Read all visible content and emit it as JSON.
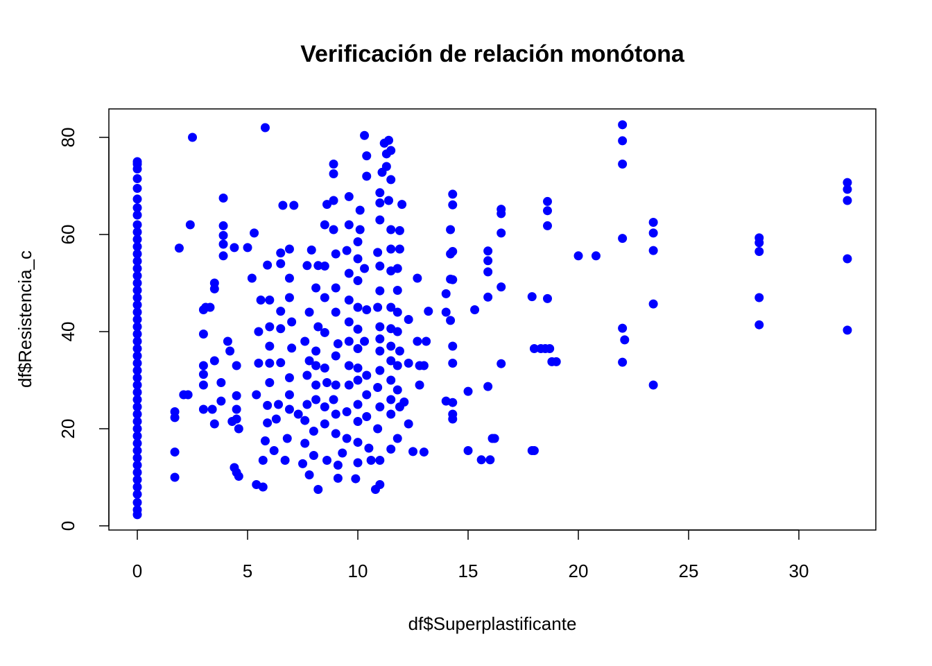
{
  "chart_data": {
    "type": "scatter",
    "title": "Verificación de relación monótona",
    "x_label": "df$Superplastificante",
    "y_label": "df$Resistencia_c",
    "color": "#0000ff",
    "xlim": [
      -1.29,
      33.49
    ],
    "ylim": [
      -0.86,
      85.86
    ],
    "xticks": [
      0,
      5,
      10,
      15,
      20,
      25,
      30
    ],
    "yticks": [
      0,
      20,
      40,
      60,
      80
    ],
    "x": [
      0,
      0,
      0,
      0,
      0,
      0,
      0,
      0,
      0,
      0,
      0,
      0,
      0,
      0,
      0,
      0,
      0,
      0,
      0,
      0,
      0,
      0,
      0,
      0,
      0,
      0,
      0,
      0,
      0,
      0,
      0,
      0,
      0,
      0,
      0,
      0,
      0,
      0,
      0,
      0,
      0,
      0,
      0,
      0,
      0,
      0,
      0,
      0,
      0,
      1.7,
      1.7,
      1.7,
      1.7,
      1.9,
      2.1,
      2.3,
      2.5,
      2.4,
      3,
      3,
      3,
      3,
      3,
      3,
      3.1,
      3.3,
      3.5,
      3.5,
      3.5,
      3.5,
      3.4,
      3.9,
      3.9,
      3.9,
      3.9,
      3.9,
      3.8,
      3.8,
      4.1,
      4.2,
      4.3,
      4.5,
      4.4,
      4.5,
      4.5,
      4.5,
      4.6,
      4.4,
      4.5,
      4.6,
      5,
      5.2,
      5.3,
      5.4,
      5.4,
      5.5,
      5.5,
      5.6,
      5.8,
      5.7,
      5.7,
      5.8,
      5.9,
      5.9,
      6,
      6,
      6,
      6,
      6,
      5.9,
      6.2,
      6.3,
      6.4,
      6.5,
      6.5,
      6.5,
      6.5,
      6.5,
      6.6,
      6.7,
      6.8,
      6.9,
      6.9,
      6.9,
      7.1,
      7,
      7,
      6.9,
      6.9,
      6.9,
      7.3,
      7.5,
      7.6,
      7.6,
      7.7,
      7.7,
      7.8,
      7.6,
      7.8,
      7.7,
      7.9,
      7.8,
      8,
      8,
      8.1,
      8.1,
      8.1,
      8.1,
      8.2,
      8.1,
      8.2,
      8.2,
      8.6,
      8.5,
      8.5,
      8.6,
      8.5,
      8.5,
      8.5,
      8.5,
      8.5,
      8.6,
      8.9,
      8.9,
      8.9,
      8.9,
      9,
      9,
      9,
      9.1,
      9,
      9,
      8.9,
      9,
      9,
      9.1,
      9.1,
      9.3,
      9.5,
      9.5,
      9.6,
      9.6,
      9.6,
      9.6,
      9.6,
      9.6,
      9.5,
      9.6,
      9.6,
      9.9,
      10,
      10,
      10,
      10,
      10,
      10,
      10,
      10,
      10,
      10,
      10,
      10,
      10.1,
      10.1,
      10.3,
      10.4,
      10.4,
      10.3,
      10.4,
      10.3,
      10.4,
      10.4,
      10.4,
      10.5,
      10.6,
      10.8,
      11,
      11,
      10.9,
      11,
      10.9,
      11,
      11,
      11,
      11,
      10.9,
      11,
      11,
      10.9,
      11,
      11,
      11,
      11.1,
      11.2,
      11.3,
      11.3,
      11.4,
      11.5,
      11.5,
      11.4,
      11.5,
      11.5,
      11.5,
      11.5,
      11.5,
      11.5,
      11.5,
      11.5,
      11.5,
      11.5,
      11.5,
      11.8,
      11.9,
      11.8,
      11.8,
      11.9,
      11.8,
      11.8,
      11.8,
      11.8,
      11.9,
      11.9,
      12,
      12.1,
      12.3,
      12.3,
      12.3,
      12.5,
      12.7,
      12.8,
      12.8,
      12.7,
      13,
      13,
      13.1,
      13.2,
      14,
      14,
      14,
      14.2,
      14.2,
      14.2,
      14.2,
      14.3,
      14.3,
      14.3,
      14.3,
      14.3,
      14.3,
      14.3,
      14.3,
      14.3,
      15,
      15,
      15.3,
      15.6,
      15.9,
      15.9,
      15.9,
      15.9,
      15.9,
      16,
      16.1,
      16.2,
      16.5,
      16.5,
      16.5,
      16.5,
      16.5,
      17.9,
      17.9,
      18,
      18,
      18.3,
      18.5,
      18.7,
      18.6,
      18.6,
      18.6,
      18.6,
      18.8,
      19,
      20,
      20.8,
      22,
      22,
      22,
      22,
      22,
      22.1,
      22,
      23.4,
      23.4,
      23.4,
      23.4,
      23.4,
      28.2,
      28.2,
      28.2,
      28.2,
      28.2,
      32.2,
      32.2,
      32.2,
      32.2,
      32.2
    ],
    "values": [
      2.3,
      3.3,
      4.8,
      6.5,
      8,
      9.5,
      11,
      12.5,
      14,
      15.5,
      17,
      18.5,
      20,
      21.5,
      23,
      24.5,
      26,
      27.5,
      29,
      30.5,
      32,
      33.5,
      35,
      36.5,
      38,
      39.5,
      41,
      42.5,
      44,
      45.5,
      47,
      48.5,
      50,
      51.5,
      53,
      54.5,
      56,
      57.5,
      59,
      60.5,
      62,
      64,
      65.5,
      67.3,
      69.5,
      71.5,
      73.5,
      74.5,
      75,
      10,
      15.2,
      22.3,
      23.5,
      57.2,
      27,
      27,
      80,
      62,
      24,
      29,
      31.2,
      33,
      39.5,
      44.5,
      45,
      45,
      50,
      48.8,
      34,
      21,
      24,
      55.6,
      58,
      59.8,
      61.8,
      67.5,
      29.5,
      25.7,
      38,
      36,
      21.5,
      33,
      57.3,
      26.8,
      24,
      22,
      20,
      12,
      11,
      10.2,
      57.3,
      51,
      60.3,
      8.5,
      27,
      33.5,
      40,
      46.5,
      82,
      13.5,
      8,
      17.5,
      21.2,
      24.8,
      29.5,
      33.5,
      37,
      41,
      46.5,
      53.7,
      15.5,
      22,
      25,
      33.6,
      40.6,
      44.2,
      54,
      56.2,
      66,
      13.5,
      18,
      24,
      27,
      30.5,
      66,
      36.6,
      42,
      47,
      51,
      57,
      23,
      12.8,
      17,
      21.7,
      25,
      31,
      34,
      38,
      44,
      53.6,
      56.8,
      10.5,
      14.5,
      19.5,
      26,
      29,
      33,
      36,
      41,
      49,
      53.6,
      7.5,
      13.5,
      21,
      24.5,
      29.5,
      32.5,
      39.8,
      47,
      53.5,
      62,
      66.2,
      74.5,
      72.5,
      67,
      61,
      56,
      49,
      44,
      37.5,
      35,
      29,
      26,
      23,
      19,
      12.5,
      9.8,
      15,
      18,
      23.5,
      29,
      33,
      38,
      42,
      46.5,
      52,
      56.7,
      62,
      67.8,
      9.7,
      13,
      17.2,
      21.5,
      25,
      30,
      32.5,
      36.5,
      40.5,
      45,
      50.5,
      55,
      58.5,
      61,
      65,
      80.4,
      76.2,
      72,
      53,
      44.5,
      38,
      31,
      27,
      22.5,
      16,
      13.5,
      7.5,
      8.5,
      13.5,
      20,
      24.5,
      28.5,
      32,
      36,
      38.5,
      41,
      45,
      48.4,
      53.5,
      56.3,
      63,
      66.5,
      68.6,
      72.8,
      78.8,
      76.6,
      74,
      79.4,
      77.3,
      71.3,
      67,
      61,
      57,
      52.5,
      45,
      40.6,
      37,
      34,
      30,
      26,
      23,
      15.8,
      18,
      24.5,
      28,
      33,
      36,
      40,
      44,
      48.5,
      53,
      57,
      60.8,
      66.2,
      25.5,
      21,
      33.5,
      42.5,
      15.3,
      38,
      29,
      33,
      51,
      15.2,
      33,
      38,
      44.2,
      25.7,
      44,
      47.8,
      61,
      56,
      50.8,
      42.3,
      68.3,
      66.1,
      56.5,
      50.7,
      37,
      33.5,
      25.4,
      23,
      22,
      27.7,
      15.5,
      44.5,
      13.6,
      56.6,
      54.6,
      52.3,
      47.1,
      28.7,
      13.6,
      18,
      18,
      65.2,
      64.3,
      60.3,
      49.2,
      33.4,
      47.2,
      15.5,
      15.5,
      36.5,
      36.5,
      36.5,
      36.5,
      66.8,
      64.9,
      61.8,
      46.8,
      33.8,
      33.8,
      55.6,
      55.6,
      82.6,
      79.3,
      74.5,
      59.2,
      40.7,
      38.3,
      33.7,
      62.5,
      60.3,
      56.7,
      45.7,
      29,
      59.3,
      58.3,
      56.5,
      47,
      41.4,
      70.7,
      69.3,
      67,
      55,
      40.3
    ]
  }
}
